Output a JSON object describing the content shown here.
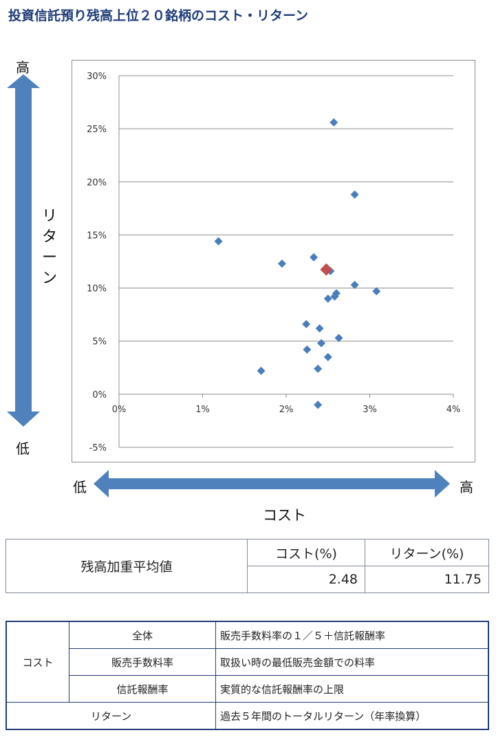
{
  "title": "投資信託預り残高上位２０銘柄のコスト・リターン",
  "y_axis_words": {
    "high": "高",
    "low": "低"
  },
  "x_axis_words": {
    "low": "低",
    "high": "高"
  },
  "vertical_label": [
    "リ",
    "タ",
    "ー",
    "ン"
  ],
  "horizontal_label": "コスト",
  "colors": {
    "points": "#4a7ebb",
    "highlight": "#c0504d",
    "arrow": "#4f81bd",
    "title": "#1f3b78"
  },
  "chart_data": {
    "type": "scatter",
    "title": "",
    "xlabel": "コスト",
    "ylabel": "リターン",
    "xlim": [
      0,
      4
    ],
    "ylim": [
      -5,
      30
    ],
    "x_ticks": [
      0,
      1,
      2,
      3,
      4
    ],
    "y_ticks": [
      -5,
      0,
      5,
      10,
      15,
      20,
      25,
      30
    ],
    "x_tick_labels": [
      "0%",
      "1%",
      "2%",
      "3%",
      "4%"
    ],
    "y_tick_labels": [
      "-5%",
      "0%",
      "5%",
      "10%",
      "15%",
      "20%",
      "25%",
      "30%"
    ],
    "grid": "horizontal",
    "points": [
      {
        "x": 2.57,
        "y": 25.6
      },
      {
        "x": 2.82,
        "y": 18.8
      },
      {
        "x": 1.19,
        "y": 14.4
      },
      {
        "x": 2.33,
        "y": 12.9
      },
      {
        "x": 1.95,
        "y": 12.3
      },
      {
        "x": 2.53,
        "y": 11.6
      },
      {
        "x": 2.82,
        "y": 10.3
      },
      {
        "x": 3.08,
        "y": 9.7
      },
      {
        "x": 2.6,
        "y": 9.5
      },
      {
        "x": 2.58,
        "y": 9.2
      },
      {
        "x": 2.5,
        "y": 9.0
      },
      {
        "x": 2.24,
        "y": 6.6
      },
      {
        "x": 2.4,
        "y": 6.2
      },
      {
        "x": 2.63,
        "y": 5.3
      },
      {
        "x": 2.42,
        "y": 4.8
      },
      {
        "x": 2.25,
        "y": 4.2
      },
      {
        "x": 2.5,
        "y": 3.5
      },
      {
        "x": 2.38,
        "y": 2.4
      },
      {
        "x": 1.7,
        "y": 2.2
      },
      {
        "x": 2.38,
        "y": -1.0
      }
    ],
    "highlight": {
      "x": 2.48,
      "y": 11.75
    }
  },
  "summary": {
    "row_label": "残高加重平均値",
    "col_cost": "コスト(%)",
    "col_return": "リターン(%)",
    "cost_value": "2.48",
    "return_value": "11.75"
  },
  "legend": {
    "cost_label": "コスト",
    "rows": [
      {
        "item": "全体",
        "desc": "販売手数料率の１／５＋信託報酬率"
      },
      {
        "item": "販売手数料率",
        "desc": "取扱い時の最低販売金額での料率"
      },
      {
        "item": "信託報酬率",
        "desc": "実質的な信託報酬率の上限"
      }
    ],
    "return_label": "リターン",
    "return_desc": "過去５年間のトータルリターン（年率換算）"
  }
}
